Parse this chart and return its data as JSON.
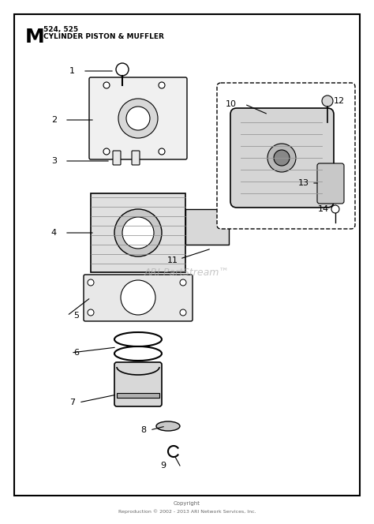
{
  "bg_color": "#ffffff",
  "border_color": "#000000",
  "title_letter": "M",
  "title_model": "524, 525",
  "title_desc": "CYLINDER PISTON & MUFFLER",
  "watermark": "ARI PartStream™",
  "footer_line1": "Copyright",
  "footer_line2": "Reproduction © 2002 - 2013 ARI Network Services, Inc."
}
